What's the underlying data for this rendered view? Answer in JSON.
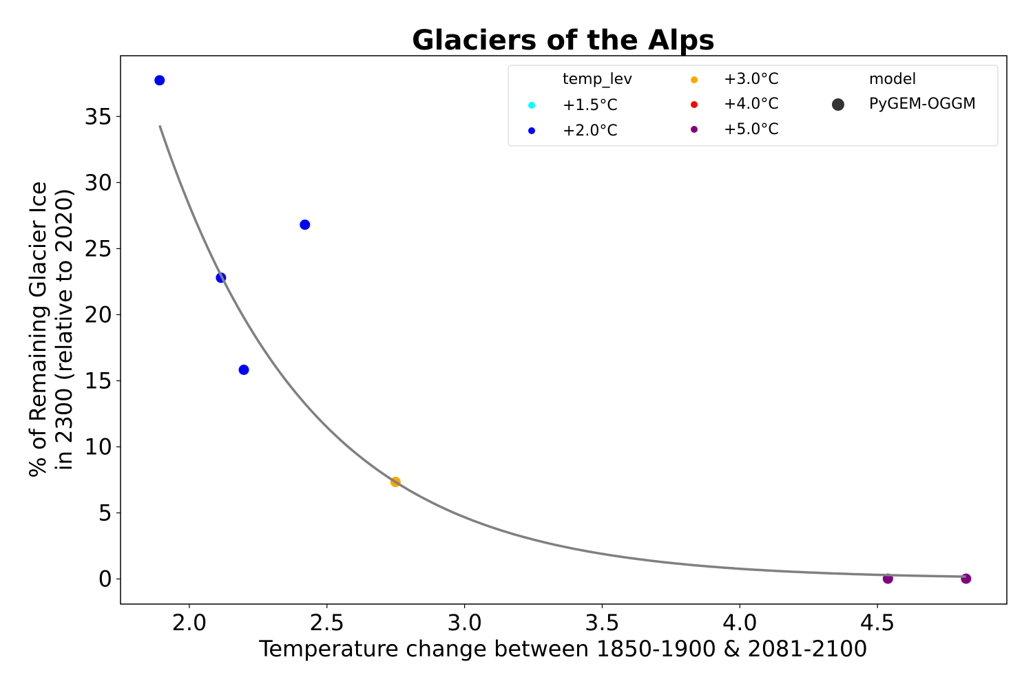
{
  "chart_data": {
    "type": "scatter",
    "title": "Glaciers of the Alps",
    "xlabel": "Temperature change between 1850-1900 & 2081-2100",
    "ylabel_lines": [
      "% of Remaining Glacier Ice",
      "in 2300 (relative to 2020)"
    ],
    "xlim": [
      1.75,
      4.97
    ],
    "ylim": [
      -1.9,
      39.6
    ],
    "x_ticks": [
      2.0,
      2.5,
      3.0,
      3.5,
      4.0,
      4.5
    ],
    "x_tick_labels": [
      "2.0",
      "2.5",
      "3.0",
      "3.5",
      "4.0",
      "4.5"
    ],
    "y_ticks": [
      0,
      5,
      10,
      15,
      20,
      25,
      30,
      35
    ],
    "y_tick_labels": [
      "0",
      "5",
      "10",
      "15",
      "20",
      "25",
      "30",
      "35"
    ],
    "grid": false,
    "points": [
      {
        "x": 1.892,
        "y": 37.74,
        "temp_lev": "+2.0°C",
        "model": "PyGEM-OGGM"
      },
      {
        "x": 2.115,
        "y": 22.8,
        "temp_lev": "+2.0°C",
        "model": "PyGEM-OGGM"
      },
      {
        "x": 2.198,
        "y": 15.83,
        "temp_lev": "+2.0°C",
        "model": "PyGEM-OGGM"
      },
      {
        "x": 2.42,
        "y": 26.81,
        "temp_lev": "+2.0°C",
        "model": "PyGEM-OGGM"
      },
      {
        "x": 2.749,
        "y": 7.34,
        "temp_lev": "+3.0°C",
        "model": "PyGEM-OGGM"
      },
      {
        "x": 4.538,
        "y": 0.02,
        "temp_lev": "+5.0°C",
        "model": "PyGEM-OGGM"
      },
      {
        "x": 4.822,
        "y": 0.02,
        "temp_lev": "+5.0°C",
        "model": "PyGEM-OGGM"
      }
    ],
    "fit_curve": {
      "type": "exponential",
      "x_range": [
        1.892,
        4.822
      ],
      "formula": "y = 7.34 * exp(-1.80 * (x - 2.749))",
      "a": 7.34,
      "k": 1.8,
      "x0": 2.749,
      "color": "#808080"
    },
    "legend": {
      "placement": "top-right",
      "hue_title": "temp_lev",
      "hue_entries": [
        {
          "label": "+1.5°C",
          "color": "#00ffff"
        },
        {
          "label": "+2.0°C",
          "color": "#0000ff"
        },
        {
          "label": "+3.0°C",
          "color": "#ffa500"
        },
        {
          "label": "+4.0°C",
          "color": "#ff0000"
        },
        {
          "label": "+5.0°C",
          "color": "#800080"
        }
      ],
      "style_title": "model",
      "style_entries": [
        {
          "label": "PyGEM-OGGM",
          "color": "#333333"
        }
      ]
    }
  }
}
